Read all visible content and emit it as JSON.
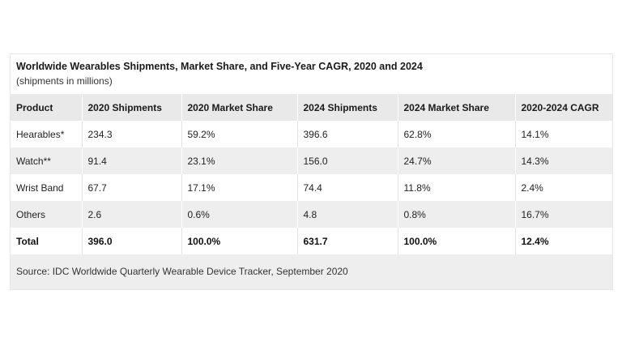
{
  "title": "Worldwide Wearables Shipments, Market Share, and Five-Year CAGR, 2020 and 2024",
  "subtitle": "(shipments in millions)",
  "table": {
    "headers": [
      "Product",
      "2020 Shipments",
      "2020 Market Share",
      "2024 Shipments",
      "2024 Market Share",
      "2020-2024 CAGR"
    ],
    "rows": [
      [
        "Hearables*",
        "234.3",
        "59.2%",
        "396.6",
        "62.8%",
        "14.1%"
      ],
      [
        "Watch**",
        "91.4",
        "23.1%",
        "156.0",
        "24.7%",
        "14.3%"
      ],
      [
        "Wrist Band",
        "67.7",
        "17.1%",
        "74.4",
        "11.8%",
        "2.4%"
      ],
      [
        "Others",
        "2.6",
        "0.6%",
        "4.8",
        "0.8%",
        "16.7%"
      ],
      [
        "Total",
        "396.0",
        "100.0%",
        "631.7",
        "100.0%",
        "12.4%"
      ]
    ]
  },
  "source": "Source: IDC Worldwide Quarterly Wearable Device Tracker, September 2020"
}
